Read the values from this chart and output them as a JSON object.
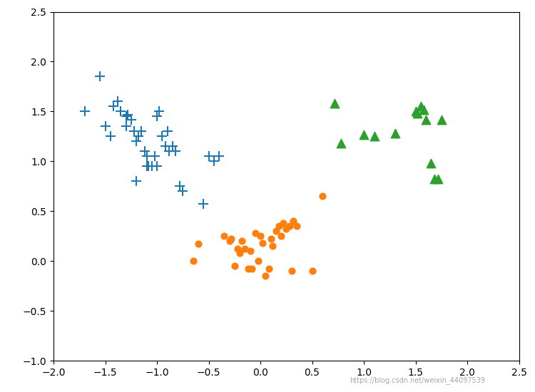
{
  "title": "",
  "xlim": [
    -2.0,
    2.5
  ],
  "ylim": [
    -1.0,
    2.5
  ],
  "xticks": [
    -2.0,
    -1.5,
    -1.0,
    -0.5,
    0.0,
    0.5,
    1.0,
    1.5,
    2.0,
    2.5
  ],
  "yticks": [
    -1.0,
    -0.5,
    0.0,
    0.5,
    1.0,
    1.5,
    2.0,
    2.5
  ],
  "cluster0_color": "#1f77b4",
  "cluster1_color": "#ff7f0e",
  "cluster2_color": "#2ca02c",
  "watermark": "https://blog.csdn.net/weixin_44097539",
  "cluster0": {
    "x": [
      -1.7,
      -1.55,
      -1.5,
      -1.45,
      -1.42,
      -1.38,
      -1.35,
      -1.3,
      -1.28,
      -1.25,
      -1.22,
      -1.2,
      -1.18,
      -1.15,
      -1.12,
      -1.1,
      -1.08,
      -1.05,
      -1.02,
      -1.0,
      -0.98,
      -0.95,
      -0.92,
      -0.9,
      -0.88,
      -0.85,
      -0.82,
      -0.78,
      -1.3,
      -1.2,
      -1.1,
      -1.0,
      -0.75,
      -0.55,
      -0.5,
      -0.45,
      -0.4
    ],
    "y": [
      1.5,
      1.85,
      1.35,
      1.25,
      1.55,
      1.6,
      1.5,
      1.35,
      1.47,
      1.42,
      1.3,
      1.2,
      1.25,
      1.3,
      1.1,
      1.05,
      0.95,
      0.95,
      1.05,
      1.45,
      1.5,
      1.25,
      1.15,
      1.3,
      1.1,
      1.15,
      1.1,
      0.75,
      1.45,
      0.8,
      0.95,
      0.95,
      0.7,
      0.57,
      1.05,
      1.0,
      1.05
    ]
  },
  "cluster1": {
    "x": [
      -0.65,
      -0.6,
      -0.35,
      -0.3,
      -0.28,
      -0.25,
      -0.22,
      -0.2,
      -0.18,
      -0.15,
      -0.12,
      -0.1,
      -0.08,
      -0.05,
      -0.02,
      0.0,
      0.02,
      0.05,
      0.08,
      0.1,
      0.12,
      0.15,
      0.18,
      0.2,
      0.22,
      0.25,
      0.28,
      0.3,
      0.32,
      0.35,
      0.5,
      0.6
    ],
    "y": [
      0.0,
      0.17,
      0.25,
      0.2,
      0.22,
      -0.05,
      0.12,
      0.08,
      0.2,
      0.12,
      -0.08,
      0.1,
      -0.08,
      0.28,
      0.0,
      0.25,
      0.18,
      -0.15,
      -0.08,
      0.22,
      0.15,
      0.3,
      0.35,
      0.25,
      0.38,
      0.32,
      0.35,
      -0.1,
      0.4,
      0.35,
      -0.1,
      0.65
    ]
  },
  "cluster2": {
    "x": [
      0.72,
      0.78,
      1.0,
      1.1,
      1.3,
      1.5,
      1.52,
      1.55,
      1.58,
      1.6,
      1.65,
      1.68,
      1.72,
      1.75
    ],
    "y": [
      1.58,
      1.18,
      1.27,
      1.25,
      1.28,
      1.5,
      1.48,
      1.55,
      1.52,
      1.42,
      0.98,
      0.82,
      0.82,
      1.42
    ]
  }
}
